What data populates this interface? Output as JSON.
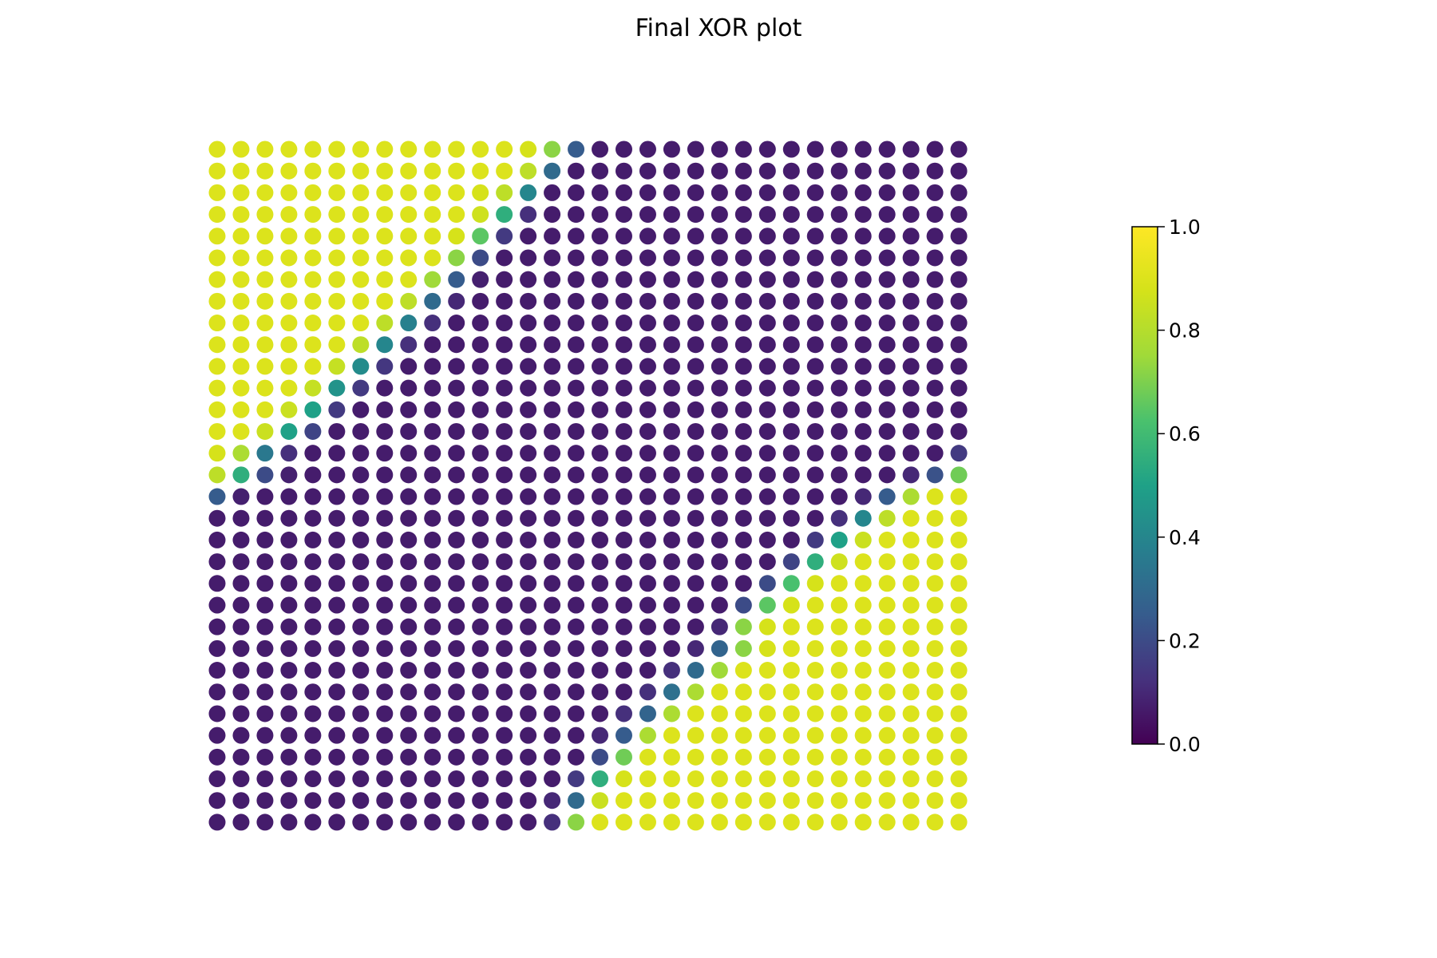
{
  "chart_data": {
    "type": "scatter",
    "title": "Final XOR plot",
    "xlabel": "",
    "ylabel": "",
    "axes_visible": false,
    "grid": false,
    "colormap": "viridis",
    "grid_size": {
      "columns": 32,
      "rows": 32
    },
    "description_of_values": "predicted probability per grid point, 0 (purple) to 1 (yellow)",
    "colorbar": {
      "range": [
        0,
        1
      ],
      "ticks": [
        0.0,
        0.2,
        0.4,
        0.6,
        0.8,
        1.0
      ],
      "tick_labels": [
        "0.0",
        "0.2",
        "0.4",
        "0.6",
        "0.8",
        "1.0"
      ],
      "placement": "right"
    },
    "values": [
      [
        0.9,
        0.9,
        0.9,
        0.9,
        0.9,
        0.9,
        0.9,
        0.9,
        0.9,
        0.9,
        0.9,
        0.9,
        0.9,
        0.88,
        0.72,
        0.25,
        0.07,
        0.07,
        0.07,
        0.07,
        0.07,
        0.07,
        0.07,
        0.07,
        0.07,
        0.07,
        0.07,
        0.07,
        0.07,
        0.07,
        0.07,
        0.07
      ],
      [
        0.9,
        0.9,
        0.9,
        0.9,
        0.9,
        0.9,
        0.9,
        0.9,
        0.9,
        0.9,
        0.9,
        0.9,
        0.9,
        0.82,
        0.3,
        0.07,
        0.07,
        0.07,
        0.07,
        0.07,
        0.07,
        0.07,
        0.07,
        0.07,
        0.07,
        0.07,
        0.07,
        0.07,
        0.07,
        0.07,
        0.07,
        0.07
      ],
      [
        0.9,
        0.9,
        0.9,
        0.9,
        0.9,
        0.9,
        0.9,
        0.9,
        0.9,
        0.9,
        0.9,
        0.88,
        0.82,
        0.4,
        0.07,
        0.07,
        0.07,
        0.07,
        0.07,
        0.07,
        0.07,
        0.07,
        0.07,
        0.07,
        0.07,
        0.07,
        0.07,
        0.07,
        0.07,
        0.07,
        0.07,
        0.07
      ],
      [
        0.9,
        0.9,
        0.9,
        0.9,
        0.9,
        0.9,
        0.9,
        0.9,
        0.9,
        0.9,
        0.9,
        0.86,
        0.55,
        0.12,
        0.07,
        0.07,
        0.07,
        0.07,
        0.07,
        0.07,
        0.07,
        0.07,
        0.07,
        0.07,
        0.07,
        0.07,
        0.07,
        0.07,
        0.07,
        0.07,
        0.07,
        0.07
      ],
      [
        0.9,
        0.9,
        0.9,
        0.9,
        0.9,
        0.9,
        0.9,
        0.9,
        0.9,
        0.9,
        0.88,
        0.65,
        0.15,
        0.07,
        0.07,
        0.07,
        0.07,
        0.07,
        0.07,
        0.07,
        0.07,
        0.07,
        0.07,
        0.07,
        0.07,
        0.07,
        0.07,
        0.07,
        0.07,
        0.07,
        0.07,
        0.07
      ],
      [
        0.9,
        0.9,
        0.9,
        0.9,
        0.9,
        0.9,
        0.9,
        0.9,
        0.9,
        0.9,
        0.72,
        0.2,
        0.07,
        0.07,
        0.07,
        0.07,
        0.07,
        0.07,
        0.07,
        0.07,
        0.07,
        0.07,
        0.07,
        0.07,
        0.07,
        0.07,
        0.07,
        0.07,
        0.07,
        0.07,
        0.07,
        0.07
      ],
      [
        0.9,
        0.9,
        0.9,
        0.9,
        0.9,
        0.9,
        0.9,
        0.9,
        0.9,
        0.75,
        0.25,
        0.08,
        0.07,
        0.07,
        0.07,
        0.07,
        0.07,
        0.07,
        0.07,
        0.07,
        0.07,
        0.07,
        0.07,
        0.07,
        0.07,
        0.07,
        0.07,
        0.07,
        0.07,
        0.07,
        0.07,
        0.07
      ],
      [
        0.9,
        0.9,
        0.9,
        0.9,
        0.9,
        0.9,
        0.9,
        0.9,
        0.82,
        0.3,
        0.1,
        0.07,
        0.07,
        0.07,
        0.07,
        0.07,
        0.07,
        0.07,
        0.07,
        0.07,
        0.07,
        0.07,
        0.07,
        0.07,
        0.07,
        0.07,
        0.07,
        0.07,
        0.07,
        0.07,
        0.07,
        0.07
      ],
      [
        0.9,
        0.9,
        0.9,
        0.9,
        0.9,
        0.9,
        0.9,
        0.82,
        0.38,
        0.12,
        0.07,
        0.07,
        0.07,
        0.07,
        0.07,
        0.07,
        0.07,
        0.07,
        0.07,
        0.07,
        0.07,
        0.07,
        0.07,
        0.07,
        0.07,
        0.07,
        0.07,
        0.07,
        0.07,
        0.07,
        0.07,
        0.07
      ],
      [
        0.9,
        0.9,
        0.9,
        0.9,
        0.9,
        0.9,
        0.82,
        0.4,
        0.12,
        0.07,
        0.07,
        0.07,
        0.07,
        0.07,
        0.07,
        0.07,
        0.07,
        0.07,
        0.07,
        0.07,
        0.07,
        0.07,
        0.07,
        0.07,
        0.07,
        0.07,
        0.07,
        0.07,
        0.07,
        0.07,
        0.07,
        0.07
      ],
      [
        0.9,
        0.9,
        0.9,
        0.9,
        0.9,
        0.84,
        0.42,
        0.14,
        0.07,
        0.07,
        0.07,
        0.07,
        0.07,
        0.07,
        0.07,
        0.07,
        0.07,
        0.07,
        0.07,
        0.07,
        0.07,
        0.07,
        0.07,
        0.07,
        0.07,
        0.07,
        0.07,
        0.07,
        0.07,
        0.07,
        0.07,
        0.07
      ],
      [
        0.9,
        0.9,
        0.9,
        0.9,
        0.84,
        0.45,
        0.15,
        0.07,
        0.07,
        0.07,
        0.07,
        0.07,
        0.07,
        0.07,
        0.07,
        0.07,
        0.07,
        0.07,
        0.07,
        0.07,
        0.07,
        0.07,
        0.07,
        0.07,
        0.07,
        0.07,
        0.07,
        0.07,
        0.07,
        0.07,
        0.07,
        0.07
      ],
      [
        0.9,
        0.9,
        0.9,
        0.85,
        0.5,
        0.15,
        0.07,
        0.07,
        0.07,
        0.07,
        0.07,
        0.07,
        0.07,
        0.07,
        0.07,
        0.07,
        0.07,
        0.07,
        0.07,
        0.07,
        0.07,
        0.07,
        0.07,
        0.07,
        0.07,
        0.07,
        0.07,
        0.07,
        0.07,
        0.07,
        0.07,
        0.07
      ],
      [
        0.9,
        0.9,
        0.85,
        0.5,
        0.18,
        0.07,
        0.07,
        0.07,
        0.07,
        0.07,
        0.07,
        0.07,
        0.07,
        0.07,
        0.07,
        0.07,
        0.07,
        0.07,
        0.07,
        0.07,
        0.07,
        0.07,
        0.07,
        0.07,
        0.07,
        0.07,
        0.07,
        0.07,
        0.07,
        0.07,
        0.07,
        0.07
      ],
      [
        0.88,
        0.78,
        0.35,
        0.12,
        0.07,
        0.07,
        0.07,
        0.07,
        0.07,
        0.07,
        0.07,
        0.07,
        0.07,
        0.07,
        0.07,
        0.07,
        0.07,
        0.07,
        0.07,
        0.07,
        0.07,
        0.07,
        0.07,
        0.07,
        0.07,
        0.07,
        0.07,
        0.07,
        0.07,
        0.07,
        0.07,
        0.15
      ],
      [
        0.82,
        0.55,
        0.2,
        0.08,
        0.07,
        0.07,
        0.07,
        0.07,
        0.07,
        0.07,
        0.07,
        0.07,
        0.07,
        0.07,
        0.07,
        0.07,
        0.07,
        0.07,
        0.07,
        0.07,
        0.07,
        0.07,
        0.07,
        0.07,
        0.07,
        0.07,
        0.07,
        0.07,
        0.07,
        0.1,
        0.22,
        0.68
      ],
      [
        0.25,
        0.08,
        0.07,
        0.07,
        0.07,
        0.07,
        0.07,
        0.07,
        0.07,
        0.07,
        0.07,
        0.07,
        0.07,
        0.07,
        0.07,
        0.07,
        0.07,
        0.07,
        0.07,
        0.07,
        0.07,
        0.07,
        0.07,
        0.07,
        0.07,
        0.07,
        0.07,
        0.1,
        0.25,
        0.78,
        0.9,
        0.9
      ],
      [
        0.07,
        0.07,
        0.07,
        0.07,
        0.07,
        0.07,
        0.07,
        0.07,
        0.07,
        0.07,
        0.07,
        0.07,
        0.07,
        0.07,
        0.07,
        0.07,
        0.07,
        0.07,
        0.07,
        0.07,
        0.07,
        0.07,
        0.07,
        0.07,
        0.07,
        0.07,
        0.12,
        0.4,
        0.82,
        0.9,
        0.9,
        0.9
      ],
      [
        0.07,
        0.07,
        0.07,
        0.07,
        0.07,
        0.07,
        0.07,
        0.07,
        0.07,
        0.07,
        0.07,
        0.07,
        0.07,
        0.07,
        0.07,
        0.07,
        0.07,
        0.07,
        0.07,
        0.07,
        0.07,
        0.07,
        0.07,
        0.07,
        0.07,
        0.15,
        0.5,
        0.85,
        0.9,
        0.9,
        0.9,
        0.9
      ],
      [
        0.07,
        0.07,
        0.07,
        0.07,
        0.07,
        0.07,
        0.07,
        0.07,
        0.07,
        0.07,
        0.07,
        0.07,
        0.07,
        0.07,
        0.07,
        0.07,
        0.07,
        0.07,
        0.07,
        0.07,
        0.07,
        0.07,
        0.07,
        0.07,
        0.18,
        0.55,
        0.86,
        0.9,
        0.9,
        0.9,
        0.9,
        0.9
      ],
      [
        0.07,
        0.07,
        0.07,
        0.07,
        0.07,
        0.07,
        0.07,
        0.07,
        0.07,
        0.07,
        0.07,
        0.07,
        0.07,
        0.07,
        0.07,
        0.07,
        0.07,
        0.07,
        0.07,
        0.07,
        0.07,
        0.07,
        0.07,
        0.2,
        0.62,
        0.88,
        0.9,
        0.9,
        0.9,
        0.9,
        0.9,
        0.9
      ],
      [
        0.07,
        0.07,
        0.07,
        0.07,
        0.07,
        0.07,
        0.07,
        0.07,
        0.07,
        0.07,
        0.07,
        0.07,
        0.07,
        0.07,
        0.07,
        0.07,
        0.07,
        0.07,
        0.07,
        0.07,
        0.07,
        0.07,
        0.2,
        0.65,
        0.88,
        0.9,
        0.9,
        0.9,
        0.9,
        0.9,
        0.9,
        0.9
      ],
      [
        0.07,
        0.07,
        0.07,
        0.07,
        0.07,
        0.07,
        0.07,
        0.07,
        0.07,
        0.07,
        0.07,
        0.07,
        0.07,
        0.07,
        0.07,
        0.07,
        0.07,
        0.07,
        0.07,
        0.07,
        0.07,
        0.1,
        0.72,
        0.88,
        0.9,
        0.9,
        0.9,
        0.9,
        0.9,
        0.9,
        0.9,
        0.9
      ],
      [
        0.07,
        0.07,
        0.07,
        0.07,
        0.07,
        0.07,
        0.07,
        0.07,
        0.07,
        0.07,
        0.07,
        0.07,
        0.07,
        0.07,
        0.07,
        0.07,
        0.07,
        0.07,
        0.07,
        0.07,
        0.1,
        0.28,
        0.72,
        0.88,
        0.9,
        0.9,
        0.9,
        0.9,
        0.9,
        0.9,
        0.9,
        0.9
      ],
      [
        0.07,
        0.07,
        0.07,
        0.07,
        0.07,
        0.07,
        0.07,
        0.07,
        0.07,
        0.07,
        0.07,
        0.07,
        0.07,
        0.07,
        0.07,
        0.07,
        0.07,
        0.07,
        0.07,
        0.12,
        0.3,
        0.75,
        0.9,
        0.9,
        0.9,
        0.9,
        0.9,
        0.9,
        0.9,
        0.9,
        0.9,
        0.9
      ],
      [
        0.07,
        0.07,
        0.07,
        0.07,
        0.07,
        0.07,
        0.07,
        0.07,
        0.07,
        0.07,
        0.07,
        0.07,
        0.07,
        0.07,
        0.07,
        0.07,
        0.07,
        0.07,
        0.12,
        0.32,
        0.78,
        0.9,
        0.9,
        0.9,
        0.9,
        0.9,
        0.9,
        0.9,
        0.9,
        0.9,
        0.9,
        0.9
      ],
      [
        0.07,
        0.07,
        0.07,
        0.07,
        0.07,
        0.07,
        0.07,
        0.07,
        0.07,
        0.07,
        0.07,
        0.07,
        0.07,
        0.07,
        0.07,
        0.07,
        0.07,
        0.12,
        0.28,
        0.78,
        0.9,
        0.9,
        0.9,
        0.9,
        0.9,
        0.9,
        0.9,
        0.9,
        0.9,
        0.9,
        0.9,
        0.9
      ],
      [
        0.07,
        0.07,
        0.07,
        0.07,
        0.07,
        0.07,
        0.07,
        0.07,
        0.07,
        0.07,
        0.07,
        0.07,
        0.07,
        0.07,
        0.07,
        0.07,
        0.1,
        0.25,
        0.78,
        0.9,
        0.9,
        0.9,
        0.9,
        0.9,
        0.9,
        0.9,
        0.9,
        0.9,
        0.9,
        0.9,
        0.9,
        0.9
      ],
      [
        0.07,
        0.07,
        0.07,
        0.07,
        0.07,
        0.07,
        0.07,
        0.07,
        0.07,
        0.07,
        0.07,
        0.07,
        0.07,
        0.07,
        0.07,
        0.07,
        0.2,
        0.68,
        0.9,
        0.9,
        0.9,
        0.9,
        0.9,
        0.9,
        0.9,
        0.9,
        0.9,
        0.9,
        0.9,
        0.9,
        0.9,
        0.9
      ],
      [
        0.07,
        0.07,
        0.07,
        0.07,
        0.07,
        0.07,
        0.07,
        0.07,
        0.07,
        0.07,
        0.07,
        0.07,
        0.07,
        0.07,
        0.07,
        0.15,
        0.55,
        0.88,
        0.9,
        0.9,
        0.9,
        0.9,
        0.9,
        0.9,
        0.9,
        0.9,
        0.9,
        0.9,
        0.9,
        0.9,
        0.9,
        0.9
      ],
      [
        0.07,
        0.07,
        0.07,
        0.07,
        0.07,
        0.07,
        0.07,
        0.07,
        0.07,
        0.07,
        0.07,
        0.07,
        0.07,
        0.07,
        0.1,
        0.3,
        0.85,
        0.9,
        0.9,
        0.9,
        0.9,
        0.9,
        0.9,
        0.9,
        0.9,
        0.9,
        0.9,
        0.9,
        0.9,
        0.9,
        0.9,
        0.9
      ],
      [
        0.07,
        0.07,
        0.07,
        0.07,
        0.07,
        0.07,
        0.07,
        0.07,
        0.07,
        0.07,
        0.07,
        0.07,
        0.07,
        0.07,
        0.12,
        0.72,
        0.9,
        0.9,
        0.9,
        0.9,
        0.9,
        0.9,
        0.9,
        0.9,
        0.9,
        0.9,
        0.9,
        0.9,
        0.9,
        0.9,
        0.9,
        0.9
      ]
    ]
  }
}
